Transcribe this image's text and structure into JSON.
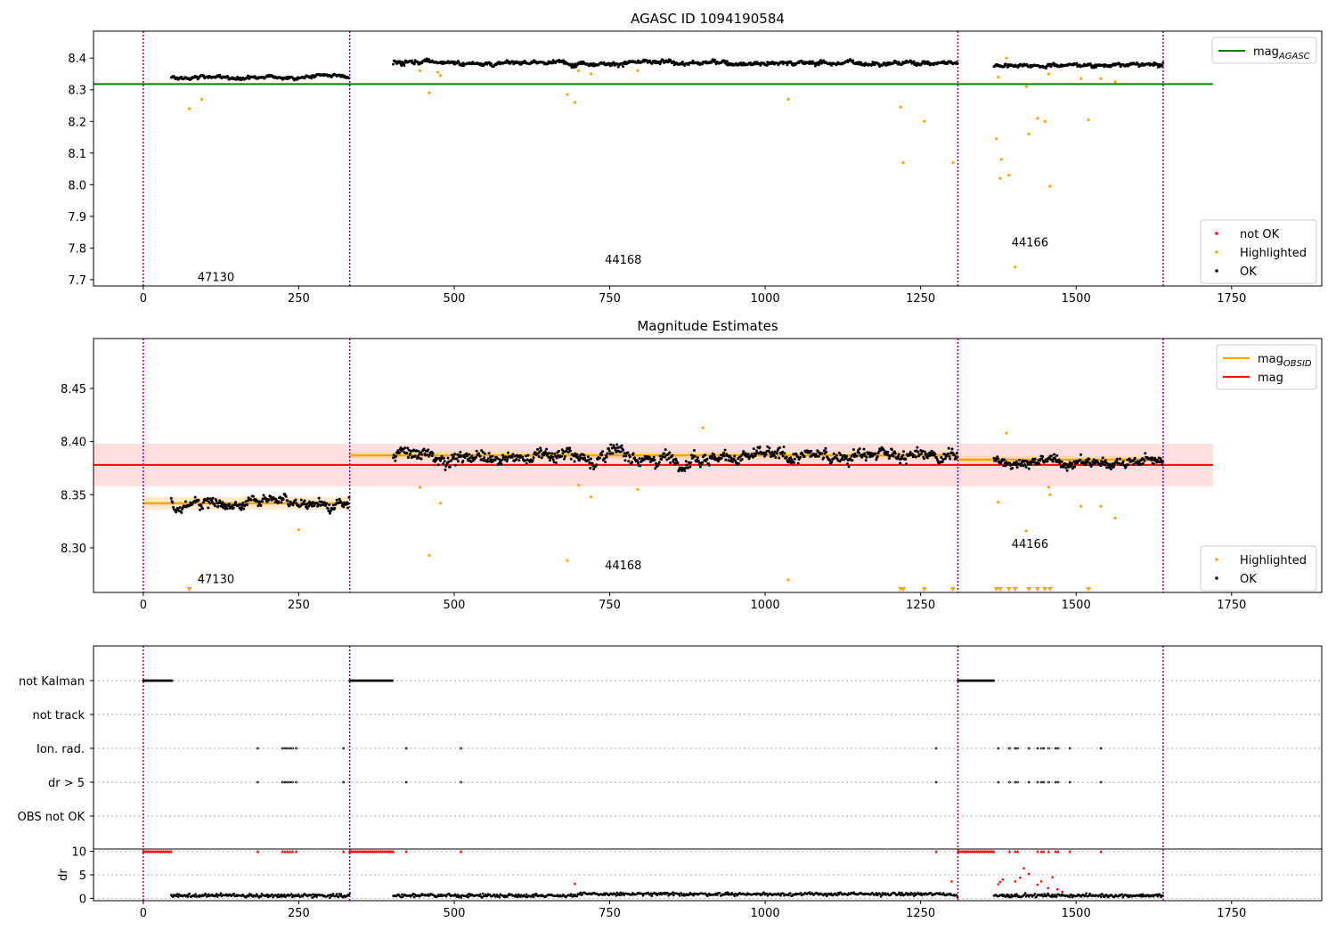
{
  "colors": {
    "ok": "#000000",
    "highlighted": "#ffa500",
    "not_ok": "#ff0000",
    "agasc": "#008000",
    "obsid": "#ffa500",
    "mag": "#ff0000",
    "band": "#ffc0c0",
    "obsid_band": "#ffd9a8",
    "vline": "#800080"
  },
  "obs_boundaries": [
    0,
    332,
    1310,
    1640
  ],
  "obsids": [
    {
      "label": "47130",
      "x_center": 166
    },
    {
      "label": "44168",
      "x_center": 821
    },
    {
      "label": "44166",
      "x_center": 1475
    }
  ],
  "xaxis": {
    "xlim": [
      -80,
      1895
    ],
    "ticks": [
      0,
      250,
      500,
      750,
      1000,
      1250,
      1500,
      1750
    ],
    "tick_labels": [
      "0",
      "250",
      "500",
      "750",
      "1000",
      "1250",
      "1500",
      "1750"
    ]
  },
  "chart_data": [
    {
      "type": "scatter",
      "title": "AGASC ID 1094190584",
      "ylim": [
        7.68,
        8.485
      ],
      "yticks": [
        7.7,
        7.8,
        7.9,
        8.0,
        8.1,
        8.2,
        8.3,
        8.4
      ],
      "ytick_labels": [
        "7.7",
        "7.8",
        "7.9",
        "8.0",
        "8.1",
        "8.2",
        "8.3",
        "8.4"
      ],
      "obsid_label_y": [
        7.71,
        7.765,
        7.82
      ],
      "mag_agasc": 8.318,
      "mag_agasc_xrange": [
        -80,
        1720
      ],
      "legend_top": {
        "entries": [
          {
            "label": "mag",
            "sub": "AGASC",
            "color": "#008000"
          }
        ],
        "placement": "top-right"
      },
      "legend_bottom": {
        "entries": [
          {
            "label": "not OK",
            "color": "#ff0000"
          },
          {
            "label": "Highlighted",
            "color": "#ffa500"
          },
          {
            "label": "OK",
            "color": "#000000"
          }
        ],
        "placement": "bottom-right"
      },
      "ok_segments": [
        {
          "x0": 45,
          "x1": 332,
          "center": 8.34,
          "spread": 0.008
        },
        {
          "x0": 402,
          "x1": 1310,
          "center": 8.385,
          "spread": 0.01
        },
        {
          "x0": 1368,
          "x1": 1640,
          "center": 8.378,
          "spread": 0.008
        }
      ],
      "highlighted": [
        [
          74,
          8.24
        ],
        [
          94,
          8.27
        ],
        [
          445,
          8.36
        ],
        [
          460,
          8.29
        ],
        [
          474,
          8.355
        ],
        [
          478,
          8.345
        ],
        [
          682,
          8.285
        ],
        [
          694,
          8.26
        ],
        [
          700,
          8.36
        ],
        [
          720,
          8.35
        ],
        [
          795,
          8.36
        ],
        [
          1037,
          8.27
        ],
        [
          1218,
          8.245
        ],
        [
          1222,
          8.07
        ],
        [
          1256,
          8.2
        ],
        [
          1302,
          8.07
        ],
        [
          1372,
          8.145
        ],
        [
          1375,
          8.34
        ],
        [
          1378,
          8.02
        ],
        [
          1380,
          8.08
        ],
        [
          1388,
          8.4
        ],
        [
          1392,
          8.03
        ],
        [
          1402,
          7.74
        ],
        [
          1420,
          8.31
        ],
        [
          1424,
          8.16
        ],
        [
          1438,
          8.21
        ],
        [
          1450,
          8.2
        ],
        [
          1456,
          8.35
        ],
        [
          1458,
          7.995
        ],
        [
          1508,
          8.335
        ],
        [
          1520,
          8.205
        ],
        [
          1540,
          8.335
        ],
        [
          1563,
          8.325
        ]
      ]
    },
    {
      "type": "scatter",
      "title": "Magnitude Estimates",
      "ylim": [
        8.258,
        8.497
      ],
      "yticks": [
        8.3,
        8.35,
        8.4,
        8.45
      ],
      "ytick_labels": [
        "8.30",
        "8.35",
        "8.40",
        "8.45"
      ],
      "obsid_label_y": [
        8.271,
        8.284,
        8.304
      ],
      "mag": 8.378,
      "mag_band": [
        8.358,
        8.398
      ],
      "mag_xrange": [
        -80,
        1720
      ],
      "mag_obsid": [
        {
          "x0": 0,
          "x1": 332,
          "value": 8.342,
          "band": [
            8.336,
            8.348
          ]
        },
        {
          "x0": 332,
          "x1": 1310,
          "value": 8.387,
          "band": [
            8.383,
            8.391
          ]
        },
        {
          "x0": 1310,
          "x1": 1640,
          "value": 8.383,
          "band": [
            8.379,
            8.387
          ]
        }
      ],
      "legend_top": {
        "entries": [
          {
            "label": "mag",
            "sub": "OBSID",
            "color": "#ffa500"
          },
          {
            "label": "mag",
            "sub": "",
            "color": "#ff0000"
          }
        ],
        "placement": "top-right"
      },
      "legend_bottom": {
        "entries": [
          {
            "label": "Highlighted",
            "color": "#ffa500"
          },
          {
            "label": "OK",
            "color": "#000000"
          }
        ],
        "placement": "bottom-right"
      },
      "ok_segments": [
        {
          "x0": 45,
          "x1": 332,
          "center": 8.342,
          "spread": 0.007
        },
        {
          "x0": 402,
          "x1": 1310,
          "center": 8.386,
          "spread": 0.009
        },
        {
          "x0": 1368,
          "x1": 1640,
          "center": 8.381,
          "spread": 0.007
        }
      ],
      "highlighted": [
        [
          94,
          8.273
        ],
        [
          250,
          8.317
        ],
        [
          445,
          8.357
        ],
        [
          460,
          8.293
        ],
        [
          478,
          8.342
        ],
        [
          682,
          8.288
        ],
        [
          700,
          8.359
        ],
        [
          720,
          8.348
        ],
        [
          795,
          8.355
        ],
        [
          900,
          8.413
        ],
        [
          1037,
          8.27
        ],
        [
          1375,
          8.343
        ],
        [
          1388,
          8.408
        ],
        [
          1420,
          8.316
        ],
        [
          1456,
          8.357
        ],
        [
          1458,
          8.35
        ],
        [
          1508,
          8.339
        ],
        [
          1540,
          8.339
        ],
        [
          1563,
          8.328
        ]
      ],
      "clipped_low": [
        74,
        1218,
        1222,
        1256,
        1302,
        1372,
        1378,
        1392,
        1402,
        1424,
        1438,
        1450,
        1458,
        1520
      ]
    },
    {
      "type": "scatter",
      "title": "",
      "categories": [
        "not Kalman",
        "not track",
        "Ion. rad.",
        "dr > 5",
        "OBS not OK"
      ],
      "flags": {
        "not Kalman": [
          [
            0,
            47
          ],
          [
            332,
            402
          ],
          [
            1310,
            1368
          ]
        ],
        "Ion. rad.": [
          184,
          224,
          228,
          232,
          236,
          240,
          246,
          322,
          423,
          511,
          1275,
          1375,
          1393,
          1402,
          1406,
          1424,
          1438,
          1444,
          1448,
          1456,
          1467,
          1471,
          1490,
          1540
        ],
        "dr > 5": [
          184,
          224,
          228,
          232,
          236,
          240,
          246,
          322,
          423,
          511,
          1275,
          1375,
          1393,
          1402,
          1406,
          1424,
          1438,
          1444,
          1448,
          1456,
          1467,
          1471,
          1490,
          1540
        ]
      },
      "dr": {
        "ylabel": "dr",
        "ylim": [
          -0.5,
          10.5
        ],
        "yticks": [
          0,
          5,
          10
        ],
        "ytick_labels": [
          "0",
          "5",
          "10"
        ],
        "ok_segments": [
          [
            45,
            332
          ],
          [
            402,
            1310
          ],
          [
            1368,
            1640
          ]
        ],
        "ok_level": 0.6,
        "capped_at_10": [
          [
            0,
            47
          ],
          [
            332,
            402
          ],
          [
            1310,
            1368
          ]
        ],
        "capped_points": [
          184,
          224,
          228,
          232,
          236,
          240,
          246,
          322,
          423,
          511,
          1275,
          1393,
          1402,
          1406,
          1438,
          1444,
          1448,
          1456,
          1467,
          1471,
          1490,
          1540
        ],
        "red_points": [
          [
            1375,
            3.0
          ],
          [
            1378,
            3.5
          ],
          [
            1382,
            4.0
          ],
          [
            1402,
            3.6
          ],
          [
            1410,
            4.4
          ],
          [
            1416,
            6.4
          ],
          [
            1424,
            5.2
          ],
          [
            1438,
            2.9
          ],
          [
            1444,
            3.6
          ],
          [
            1455,
            2.2
          ],
          [
            1462,
            4.5
          ],
          [
            1470,
            1.9
          ],
          [
            1478,
            1.4
          ],
          [
            1300,
            3.6
          ],
          [
            694,
            3.1
          ]
        ]
      }
    }
  ]
}
